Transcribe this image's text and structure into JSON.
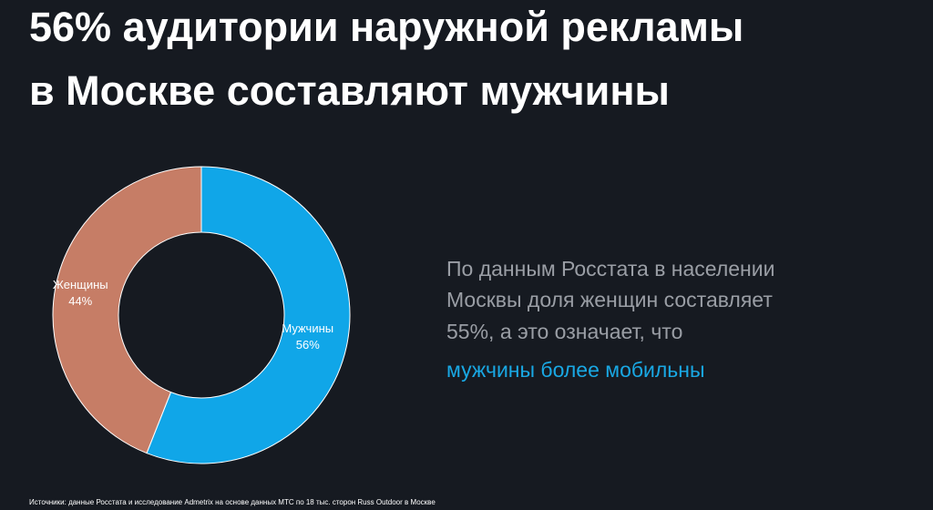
{
  "chart_data": {
    "type": "pie",
    "title_lines": [
      "56% аудитории наружной рекламы",
      "в Москве составляют мужчины"
    ],
    "categories": [
      "Мужчины",
      "Женщины"
    ],
    "values": [
      56,
      44
    ],
    "value_labels": [
      "56%",
      "44%"
    ],
    "colors": [
      "#10a6e8",
      "#c67d66"
    ],
    "note_lines": [
      "По данным Росстата в населении",
      "Москвы доля женщин составляет",
      "55%, а это означает, что"
    ],
    "highlight": "мужчины более мобильны",
    "source": "Источники: данные Росстата и исследование Admetrix на основе данных МТС по 18 тыс. сторон Russ Outdoor в Москве"
  }
}
